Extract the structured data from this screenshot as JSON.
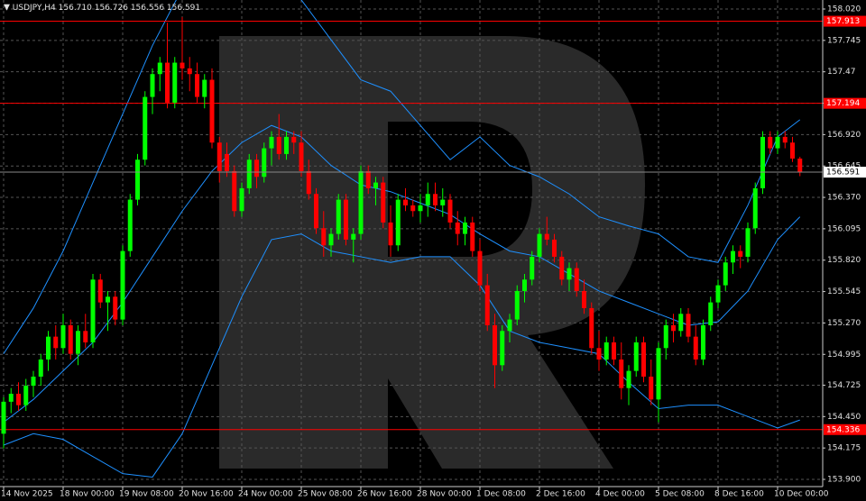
{
  "header": {
    "symbol": "USDJPY,H4",
    "open": "156.710",
    "high": "156.726",
    "low": "156.556",
    "close": "156.591"
  },
  "chart_data": {
    "type": "candlestick",
    "up_color": "#00ff00",
    "down_color": "#ff0000",
    "grid": true,
    "ylim": [
      153.9,
      158.02
    ],
    "yticks": [
      {
        "value": 158.02,
        "label": "158.020"
      },
      157.745,
      157.47,
      157.195,
      {
        "value": 156.92,
        "label": "156.920"
      },
      156.645,
      {
        "value": 156.37,
        "label": "156.370"
      },
      156.095,
      {
        "value": 155.82,
        "label": "155.820"
      },
      155.545,
      {
        "value": 155.27,
        "label": "155.270"
      },
      154.995,
      154.725,
      {
        "value": 154.45,
        "label": "154.450"
      },
      154.175,
      {
        "value": 153.9,
        "label": "153.900"
      }
    ],
    "categories": [
      "14 Nov 2025",
      null,
      null,
      null,
      null,
      null,
      null,
      null,
      "18 Nov 00:00",
      null,
      null,
      null,
      null,
      null,
      null,
      null,
      "19 Nov 08:00",
      null,
      null,
      null,
      null,
      null,
      null,
      null,
      "20 Nov 16:00",
      null,
      null,
      null,
      null,
      null,
      null,
      null,
      "24 Nov 00:00",
      null,
      null,
      null,
      null,
      null,
      null,
      null,
      "25 Nov 08:00",
      null,
      null,
      null,
      null,
      null,
      null,
      null,
      "26 Nov 16:00",
      null,
      null,
      null,
      null,
      null,
      null,
      null,
      "28 Nov 00:00",
      null,
      null,
      null,
      null,
      null,
      null,
      null,
      "1 Dec 08:00",
      null,
      null,
      null,
      null,
      null,
      null,
      null,
      "2 Dec 16:00",
      null,
      null,
      null,
      null,
      null,
      null,
      null,
      "4 Dec 00:00",
      null,
      null,
      null,
      null,
      null,
      null,
      null,
      "5 Dec 08:00",
      null,
      null,
      null,
      null,
      null,
      null,
      null,
      "8 Dec 16:00",
      null,
      null,
      null,
      null,
      null,
      null,
      null,
      "10 Dec 00:00",
      null,
      null,
      null
    ],
    "open": [
      154.3,
      154.58,
      154.65,
      154.55,
      154.72,
      154.8,
      154.95,
      155.15,
      155.05,
      155.25,
      155.0,
      155.2,
      155.1,
      155.65,
      155.45,
      155.5,
      155.3,
      155.9,
      156.35,
      156.7,
      157.25,
      157.45,
      157.55,
      157.2,
      157.55,
      157.5,
      157.45,
      157.25,
      157.4,
      156.85,
      156.75,
      156.6,
      156.25,
      156.45,
      156.7,
      156.55,
      156.8,
      156.9,
      156.75,
      156.9,
      156.85,
      156.6,
      156.4,
      156.1,
      155.95,
      156.05,
      156.35,
      156.0,
      156.05,
      156.6,
      156.45,
      156.5,
      156.15,
      155.95,
      156.35,
      156.3,
      156.25,
      156.3,
      156.4,
      156.3,
      156.35,
      156.15,
      156.05,
      156.15,
      155.9,
      155.6,
      155.25,
      154.9,
      155.2,
      155.3,
      155.55,
      155.65,
      155.85,
      156.05,
      156.0,
      155.85,
      155.65,
      155.75,
      155.55,
      155.4,
      155.05,
      154.95,
      155.1,
      154.95,
      154.7,
      154.85,
      155.1,
      154.8,
      154.6,
      155.05,
      155.25,
      155.2,
      155.35,
      155.15,
      154.95,
      155.25,
      155.45,
      155.6,
      155.8,
      155.9,
      155.85,
      156.1,
      156.45,
      156.9,
      156.8,
      156.9,
      156.85,
      156.71
    ],
    "high": [
      154.62,
      154.7,
      154.75,
      154.78,
      154.85,
      155.0,
      155.2,
      155.25,
      155.35,
      155.3,
      155.25,
      155.35,
      155.7,
      155.7,
      155.55,
      155.55,
      155.95,
      156.4,
      156.75,
      157.3,
      157.5,
      157.6,
      157.9,
      157.6,
      157.95,
      157.6,
      157.55,
      157.45,
      157.5,
      156.9,
      156.85,
      156.65,
      156.5,
      156.75,
      156.75,
      156.85,
      156.95,
      157.1,
      156.95,
      156.95,
      156.95,
      156.7,
      156.45,
      156.25,
      156.1,
      156.4,
      156.4,
      156.1,
      156.65,
      156.65,
      156.55,
      156.55,
      156.3,
      156.4,
      156.45,
      156.35,
      156.4,
      156.5,
      156.5,
      156.45,
      156.4,
      156.25,
      156.2,
      156.2,
      156.0,
      155.7,
      155.35,
      155.25,
      155.35,
      155.6,
      155.7,
      155.9,
      156.1,
      156.2,
      156.05,
      155.9,
      155.8,
      155.8,
      155.65,
      155.45,
      155.2,
      155.15,
      155.15,
      155.1,
      154.9,
      155.15,
      155.15,
      154.95,
      155.1,
      155.3,
      155.35,
      155.4,
      155.4,
      155.25,
      155.3,
      155.5,
      155.65,
      155.85,
      155.95,
      155.95,
      156.15,
      156.5,
      156.95,
      156.95,
      156.95,
      156.95,
      156.9,
      156.726
    ],
    "low": [
      154.17,
      154.48,
      154.5,
      154.5,
      154.62,
      154.72,
      154.85,
      154.95,
      155.0,
      154.95,
      154.9,
      155.05,
      155.05,
      155.4,
      155.2,
      155.25,
      155.25,
      155.85,
      156.3,
      156.65,
      157.1,
      157.3,
      157.15,
      157.15,
      157.4,
      157.3,
      157.2,
      157.15,
      156.8,
      156.5,
      156.55,
      156.2,
      156.2,
      156.4,
      156.45,
      156.5,
      156.65,
      156.7,
      156.7,
      156.75,
      156.55,
      156.35,
      156.05,
      155.85,
      155.85,
      156.0,
      155.95,
      155.8,
      156.0,
      156.4,
      156.3,
      156.1,
      155.85,
      155.9,
      156.25,
      156.2,
      156.15,
      156.2,
      156.25,
      156.2,
      156.1,
      155.95,
      155.95,
      155.85,
      155.55,
      155.2,
      154.7,
      154.85,
      155.1,
      155.25,
      155.45,
      155.6,
      155.8,
      155.95,
      155.8,
      155.6,
      155.55,
      155.5,
      155.35,
      155.0,
      154.85,
      154.9,
      154.9,
      154.6,
      154.55,
      154.8,
      154.75,
      154.55,
      154.4,
      154.95,
      155.1,
      155.15,
      155.1,
      154.9,
      154.9,
      155.2,
      155.4,
      155.55,
      155.7,
      155.75,
      155.8,
      156.05,
      156.4,
      156.75,
      156.75,
      156.8,
      156.68,
      156.556
    ],
    "close": [
      154.58,
      154.65,
      154.55,
      154.72,
      154.8,
      154.95,
      155.15,
      155.05,
      155.25,
      155.0,
      155.2,
      155.1,
      155.65,
      155.45,
      155.5,
      155.3,
      155.9,
      156.35,
      156.7,
      157.25,
      157.45,
      157.55,
      157.2,
      157.55,
      157.5,
      157.45,
      157.25,
      157.4,
      156.85,
      156.6,
      156.6,
      156.25,
      156.45,
      156.7,
      156.55,
      156.8,
      156.9,
      156.75,
      156.9,
      156.85,
      156.6,
      156.4,
      156.1,
      155.95,
      156.05,
      156.35,
      156.0,
      156.05,
      156.6,
      156.45,
      156.5,
      156.15,
      155.95,
      156.35,
      156.3,
      156.25,
      156.3,
      156.4,
      156.3,
      156.35,
      156.15,
      156.05,
      156.15,
      155.9,
      155.6,
      155.25,
      154.9,
      155.2,
      155.3,
      155.55,
      155.65,
      155.85,
      156.05,
      156.0,
      155.85,
      155.65,
      155.75,
      155.55,
      155.4,
      155.05,
      154.95,
      155.1,
      154.95,
      154.7,
      154.85,
      155.1,
      154.8,
      154.6,
      155.05,
      155.25,
      155.2,
      155.35,
      155.15,
      154.95,
      155.25,
      155.45,
      155.6,
      155.8,
      155.9,
      155.85,
      156.1,
      156.45,
      156.9,
      156.8,
      156.9,
      156.85,
      156.71,
      156.591
    ],
    "band_x": [
      0,
      4,
      8,
      12,
      16,
      20,
      24,
      28,
      32,
      36,
      40,
      44,
      48,
      52,
      56,
      60,
      64,
      68,
      72,
      76,
      80,
      84,
      88,
      92,
      96,
      100,
      104,
      107
    ],
    "bands": [
      {
        "color": "#1e90ff",
        "values": [
          155.0,
          155.4,
          155.9,
          156.5,
          157.1,
          157.7,
          158.2,
          158.5,
          158.6,
          158.5,
          158.1,
          157.75,
          157.4,
          157.3,
          157.0,
          156.7,
          156.9,
          156.65,
          156.55,
          156.4,
          156.2,
          156.12,
          156.05,
          155.85,
          155.8,
          156.3,
          156.9,
          157.05
        ]
      },
      {
        "color": "#1e90ff",
        "values": [
          154.4,
          154.6,
          154.85,
          155.1,
          155.45,
          155.85,
          156.25,
          156.6,
          156.85,
          157.0,
          156.9,
          156.65,
          156.48,
          156.42,
          156.32,
          156.22,
          156.05,
          155.9,
          155.85,
          155.7,
          155.55,
          155.45,
          155.35,
          155.25,
          155.28,
          155.55,
          156.0,
          156.2
        ]
      },
      {
        "color": "#1e90ff",
        "values": [
          154.2,
          154.3,
          154.25,
          154.1,
          153.95,
          153.92,
          154.3,
          154.9,
          155.5,
          156.0,
          156.05,
          155.9,
          155.85,
          155.8,
          155.85,
          155.85,
          155.6,
          155.2,
          155.1,
          155.05,
          155.0,
          154.75,
          154.52,
          154.55,
          154.55,
          154.45,
          154.35,
          154.42
        ]
      }
    ],
    "levels": [
      {
        "value": 157.913,
        "color": "#ff0000"
      },
      {
        "value": 157.194,
        "color": "#ff0000"
      },
      {
        "value": 154.336,
        "color": "#ff0000"
      }
    ],
    "last_price": 156.591
  }
}
